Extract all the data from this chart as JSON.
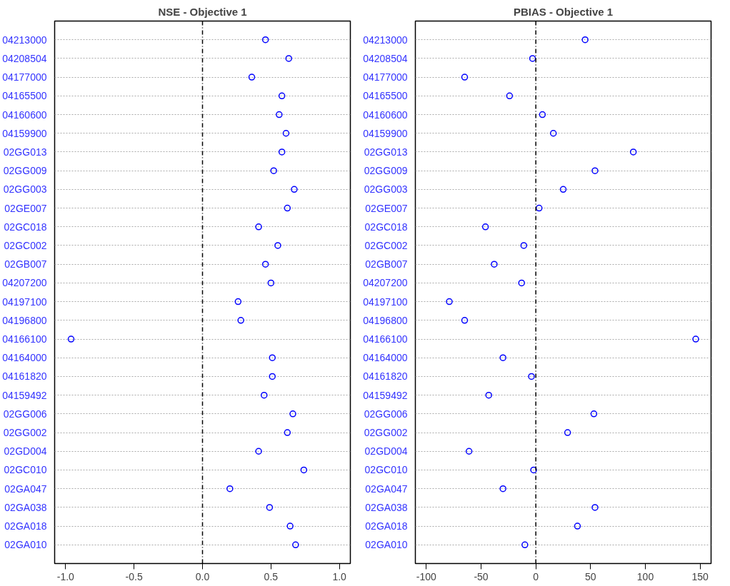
{
  "chart_data": [
    {
      "type": "scatter",
      "title": "NSE - Objective 1",
      "orientation": "horizontal",
      "categories": [
        "04213000",
        "04208504",
        "04177000",
        "04165500",
        "04160600",
        "04159900",
        "02GG013",
        "02GG009",
        "02GG003",
        "02GE007",
        "02GC018",
        "02GC002",
        "02GB007",
        "04207200",
        "04197100",
        "04196800",
        "04166100",
        "04164000",
        "04161820",
        "04159492",
        "02GG006",
        "02GG002",
        "02GD004",
        "02GC010",
        "02GA047",
        "02GA038",
        "02GA018",
        "02GA010"
      ],
      "series": [
        {
          "color": "#0000ff",
          "values": [
            0.46,
            0.63,
            0.36,
            0.58,
            0.56,
            0.61,
            0.58,
            0.52,
            0.67,
            0.62,
            0.41,
            0.55,
            0.46,
            0.5,
            0.26,
            0.28,
            -0.96,
            0.51,
            0.51,
            0.45,
            0.66,
            0.62,
            0.41,
            0.74,
            0.2,
            0.49,
            0.64,
            0.68
          ]
        }
      ],
      "xlim": [
        -1.08,
        1.08
      ],
      "xticks": [
        {
          "value": -1,
          "label": "-1.0"
        },
        {
          "value": -0.5,
          "label": "-0.5"
        },
        {
          "value": 0,
          "label": "0.0"
        },
        {
          "value": 0.5,
          "label": "0.5"
        },
        {
          "value": 1,
          "label": "1.0"
        }
      ],
      "ref_lines": [
        {
          "axis": "x",
          "value": 0,
          "color": "#000000",
          "line_style": "dashed"
        }
      ],
      "grid": "y",
      "marker": "circle"
    },
    {
      "type": "scatter",
      "title": "PBIAS - Objective 1",
      "orientation": "horizontal",
      "categories": [
        "04213000",
        "04208504",
        "04177000",
        "04165500",
        "04160600",
        "04159900",
        "02GG013",
        "02GG009",
        "02GG003",
        "02GE007",
        "02GC018",
        "02GC002",
        "02GB007",
        "04207200",
        "04197100",
        "04196800",
        "04166100",
        "04164000",
        "04161820",
        "04159492",
        "02GG006",
        "02GG002",
        "02GD004",
        "02GC010",
        "02GA047",
        "02GA038",
        "02GA018",
        "02GA010"
      ],
      "series": [
        {
          "color": "#0000ff",
          "values": [
            45,
            -3,
            -65,
            -24,
            6,
            16,
            89,
            54,
            25,
            3,
            -46,
            -11,
            -38,
            -13,
            -79,
            -65,
            146,
            -30,
            -4,
            -43,
            53,
            29,
            -61,
            -2,
            -30,
            54,
            38,
            -10
          ]
        }
      ],
      "xlim": [
        -110,
        160
      ],
      "xticks": [
        -100,
        -50,
        0,
        50,
        100,
        150
      ],
      "ref_lines": [
        {
          "axis": "x",
          "value": 0,
          "color": "#000000",
          "line_style": "dashed"
        }
      ],
      "grid": "y",
      "marker": "circle"
    }
  ]
}
